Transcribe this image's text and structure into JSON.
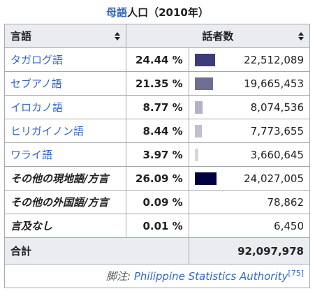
{
  "caption": {
    "link_text": "母語",
    "rest_text": "人口（2010年）"
  },
  "headers": {
    "language": "言語",
    "speakers": "話者数"
  },
  "rows": [
    {
      "lang": "タガログ語",
      "linked": true,
      "pct": "24.44 %",
      "count": "22,512,089",
      "share": 0.2444,
      "bar_color": "#3c3c78"
    },
    {
      "lang": "セブアノ語",
      "linked": true,
      "pct": "21.35 %",
      "count": "19,665,453",
      "share": 0.2135,
      "bar_color": "#6e6e95"
    },
    {
      "lang": "イロカノ語",
      "linked": true,
      "pct": "8.77 %",
      "count": "8,074,536",
      "share": 0.0877,
      "bar_color": "#b3b3c8"
    },
    {
      "lang": "ヒリガイノン語",
      "linked": true,
      "pct": "8.44 %",
      "count": "7,773,655",
      "share": 0.0844,
      "bar_color": "#c0c0d0"
    },
    {
      "lang": "ワライ語",
      "linked": true,
      "pct": "3.97 %",
      "count": "3,660,645",
      "share": 0.0397,
      "bar_color": "#d6d6e0"
    },
    {
      "lang": "その他の現地語/方言",
      "linked": false,
      "pct": "26.09 %",
      "count": "24,027,005",
      "share": 0.2609,
      "bar_color": "#000040"
    },
    {
      "lang": "その他の外国語/方言",
      "linked": false,
      "pct": "0.09 %",
      "count": "78,862",
      "share": 0.0009,
      "bar_color": "#ffffff"
    },
    {
      "lang": "言及なし",
      "linked": false,
      "pct": "0.01 %",
      "count": "6,450",
      "share": 0.0001,
      "bar_color": "#ffffff"
    }
  ],
  "total": {
    "label": "合計",
    "value": "92,097,978"
  },
  "footer": {
    "prefix": "脚注: ",
    "source": "Philippine Statistics Authority",
    "ref": "[75]"
  }
}
